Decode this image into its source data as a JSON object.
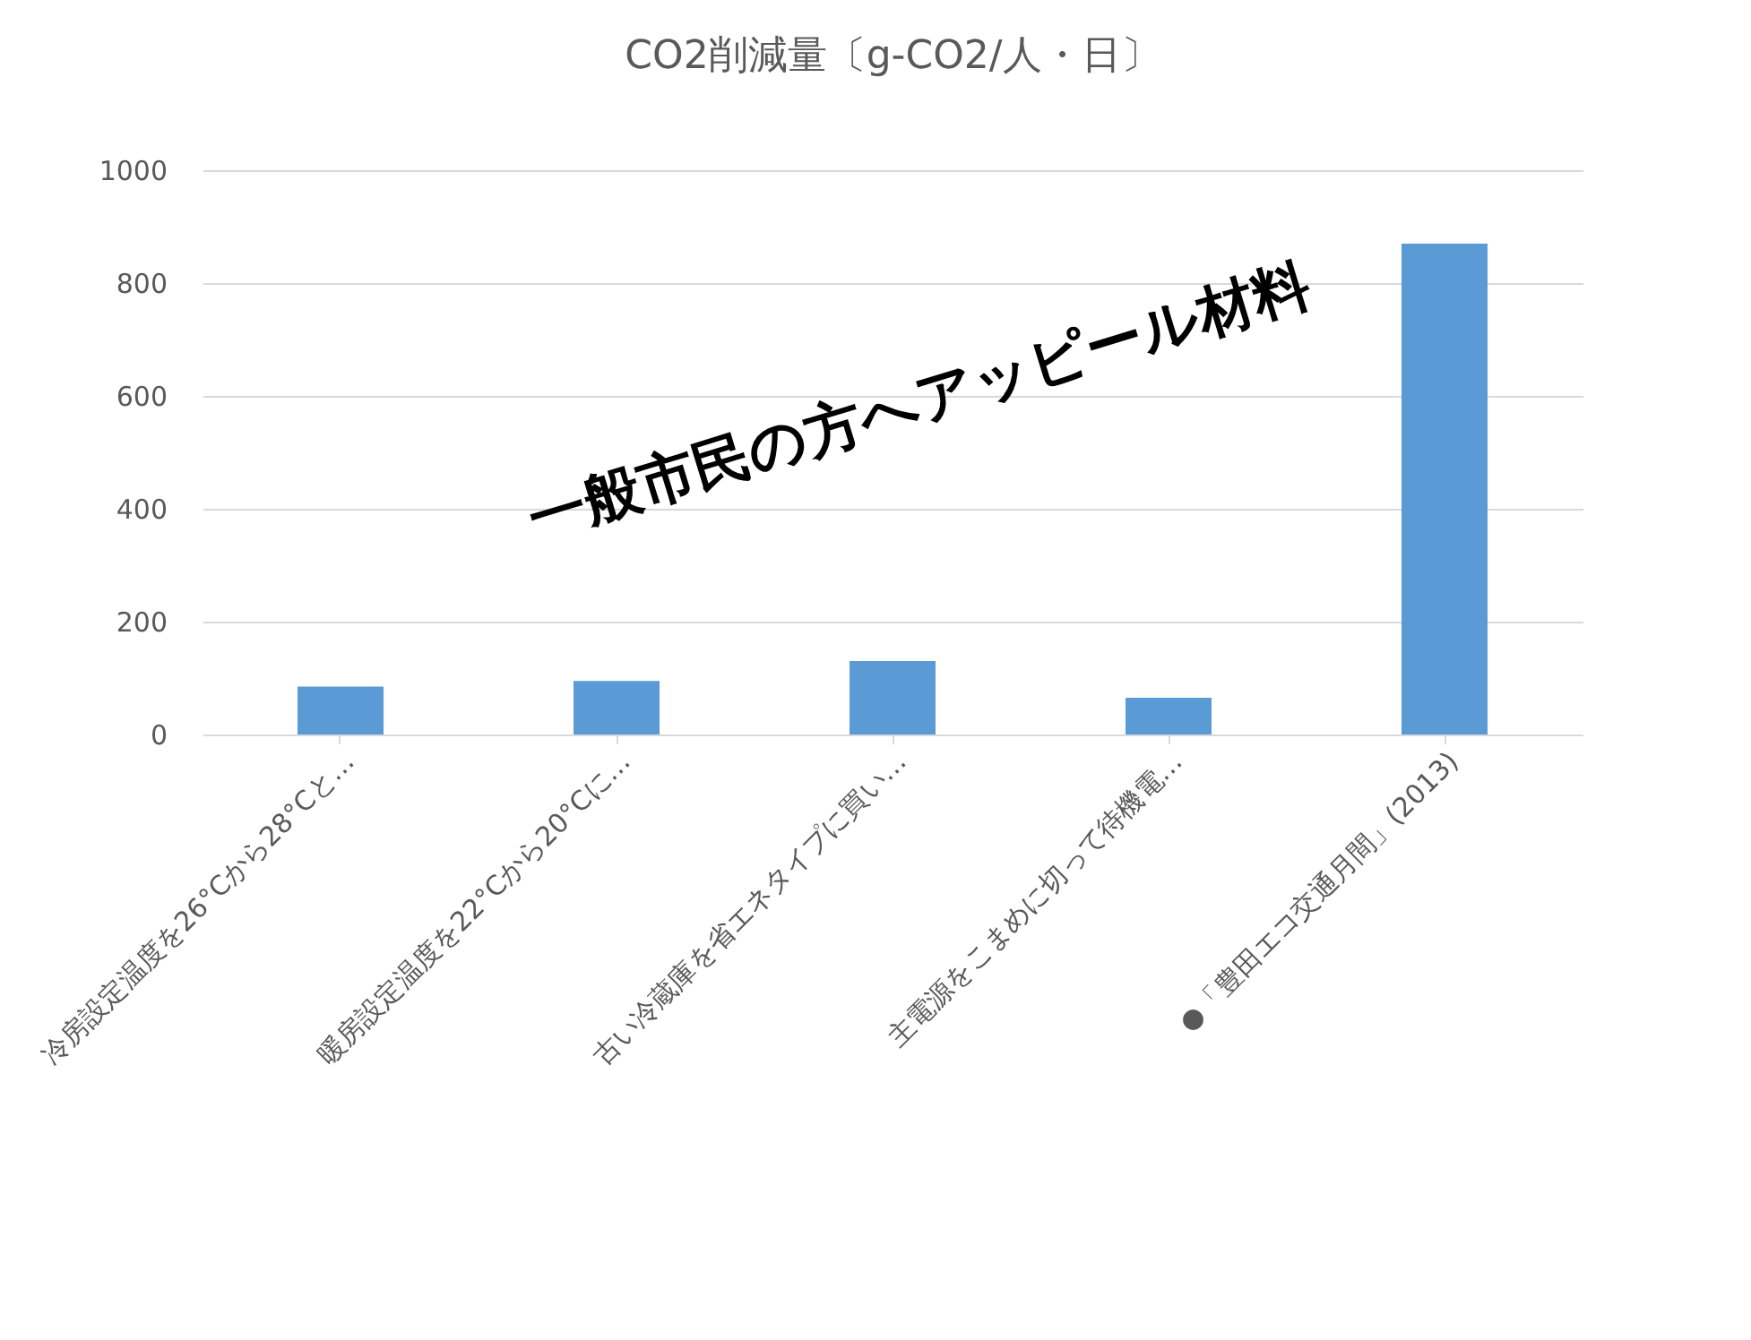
{
  "chart_data": {
    "type": "bar",
    "title": "CO2削減量〔g-CO2/人・日〕",
    "categories": [
      "冷房設定温度を26°Cから28°Cと…",
      "暖房設定温度を22°Cから20°Cに…",
      "古い冷蔵庫を省エネタイプに買い…",
      "主電源をこまめに切って待機電…",
      "●「豊田エコ交通月間」(2013)"
    ],
    "values": [
      85,
      95,
      130,
      65,
      870
    ],
    "color": "#5b9bd5",
    "ylim": [
      0,
      1000
    ],
    "yticks": [
      0,
      200,
      400,
      600,
      800,
      1000
    ],
    "grid": "y",
    "annotations": [
      "一般市民の方へアッピール材料"
    ]
  }
}
